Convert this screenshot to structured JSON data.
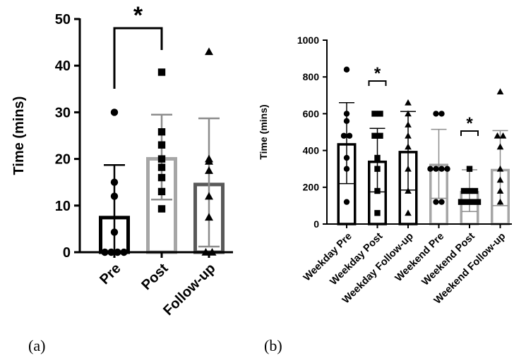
{
  "chart_data": [
    {
      "panel": "(a)",
      "type": "bar",
      "ylabel": "Time (mins)",
      "ylim": [
        0,
        50
      ],
      "yticks": [
        "0",
        "10",
        "20",
        "30",
        "40",
        "50"
      ],
      "categories": [
        "Pre",
        "Post",
        "Follow-up"
      ],
      "means": [
        7.8,
        20.4,
        14.9
      ],
      "sd_upper": [
        18.7,
        29.5,
        28.7
      ],
      "sd_lower": [
        0,
        11.3,
        1.2
      ],
      "bar_colors": [
        "#000000",
        "#a6a6a6",
        "#595959"
      ],
      "markers": [
        "circle",
        "square",
        "triangle"
      ],
      "points": [
        [
          0,
          0,
          0,
          0,
          4.3,
          12.0,
          15.0,
          30.0
        ],
        [
          9.3,
          13.0,
          16.0,
          18.2,
          20.0,
          23.0,
          25.8,
          38.6
        ],
        [
          0,
          0,
          7.5,
          12.0,
          17.5,
          19.5,
          20.0,
          43.0
        ]
      ],
      "significance": [
        {
          "from": "Pre",
          "to": "Post",
          "label": "*"
        }
      ]
    },
    {
      "panel": "(b)",
      "type": "bar",
      "ylabel": "Time (mins)",
      "ylim": [
        0,
        1000
      ],
      "yticks": [
        "0",
        "200",
        "400",
        "600",
        "800",
        "1000"
      ],
      "categories": [
        "Weekday Pre",
        "Weekday Post",
        "Weekday Follow-up",
        "Weekend Pre",
        "Weekend Post",
        "Weekend Follow-up"
      ],
      "means": [
        440,
        345,
        398,
        328,
        180,
        300
      ],
      "sd_upper": [
        660,
        520,
        612,
        515,
        295,
        508
      ],
      "sd_lower": [
        220,
        175,
        185,
        140,
        68,
        100
      ],
      "bar_colors": [
        "#000000",
        "#000000",
        "#000000",
        "#a6a6a6",
        "#a6a6a6",
        "#a6a6a6"
      ],
      "markers": [
        "circle",
        "square",
        "triangle",
        "circle",
        "square",
        "triangle"
      ],
      "points": [
        [
          120,
          300,
          360,
          480,
          480,
          560,
          600,
          840
        ],
        [
          60,
          180,
          300,
          360,
          480,
          480,
          600,
          600
        ],
        [
          60,
          180,
          300,
          420,
          480,
          540,
          600,
          660
        ],
        [
          120,
          120,
          300,
          300,
          300,
          300,
          600,
          600
        ],
        [
          120,
          120,
          120,
          120,
          180,
          180,
          180,
          300
        ],
        [
          120,
          180,
          240,
          300,
          420,
          480,
          480,
          720
        ]
      ],
      "significance": [
        {
          "from": "Weekday Post",
          "to": "Weekday Post",
          "label": "*"
        },
        {
          "from": "Weekend Post",
          "to": "Weekend Post",
          "label": "*"
        }
      ]
    }
  ]
}
